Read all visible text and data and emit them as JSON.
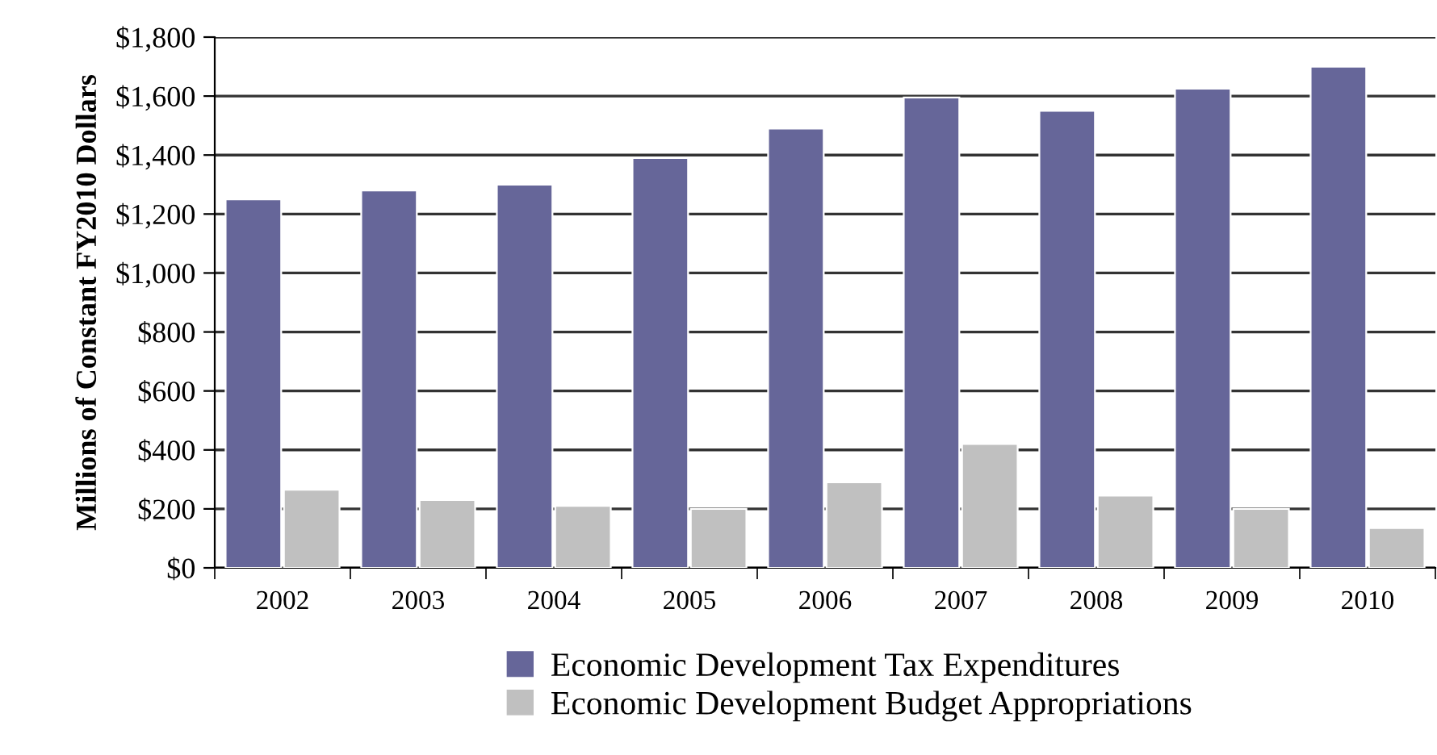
{
  "chart_data": {
    "type": "bar",
    "ylabel": "Millions of Constant FY2010 Dollars",
    "categories": [
      "2002",
      "2003",
      "2004",
      "2005",
      "2006",
      "2007",
      "2008",
      "2009",
      "2010"
    ],
    "series": [
      {
        "name": "Economic Development Tax Expenditures",
        "color": "#666699",
        "values": [
          1250,
          1280,
          1300,
          1390,
          1490,
          1595,
          1550,
          1625,
          1700
        ]
      },
      {
        "name": "Economic Development Budget Appropriations",
        "color": "#c0c0c0",
        "values": [
          265,
          230,
          210,
          200,
          290,
          420,
          245,
          200,
          135
        ]
      }
    ],
    "ylim": [
      0,
      1800
    ],
    "yticks": [
      {
        "value": 0,
        "label": "$0"
      },
      {
        "value": 200,
        "label": "$200"
      },
      {
        "value": 400,
        "label": "$400"
      },
      {
        "value": 600,
        "label": "$600"
      },
      {
        "value": 800,
        "label": "$800"
      },
      {
        "value": 1000,
        "label": "$1,000"
      },
      {
        "value": 1200,
        "label": "$1,200"
      },
      {
        "value": 1400,
        "label": "$1,400"
      },
      {
        "value": 1600,
        "label": "$1,600"
      },
      {
        "value": 1800,
        "label": "$1,800"
      }
    ],
    "grid": "y",
    "legend": "bottom"
  }
}
